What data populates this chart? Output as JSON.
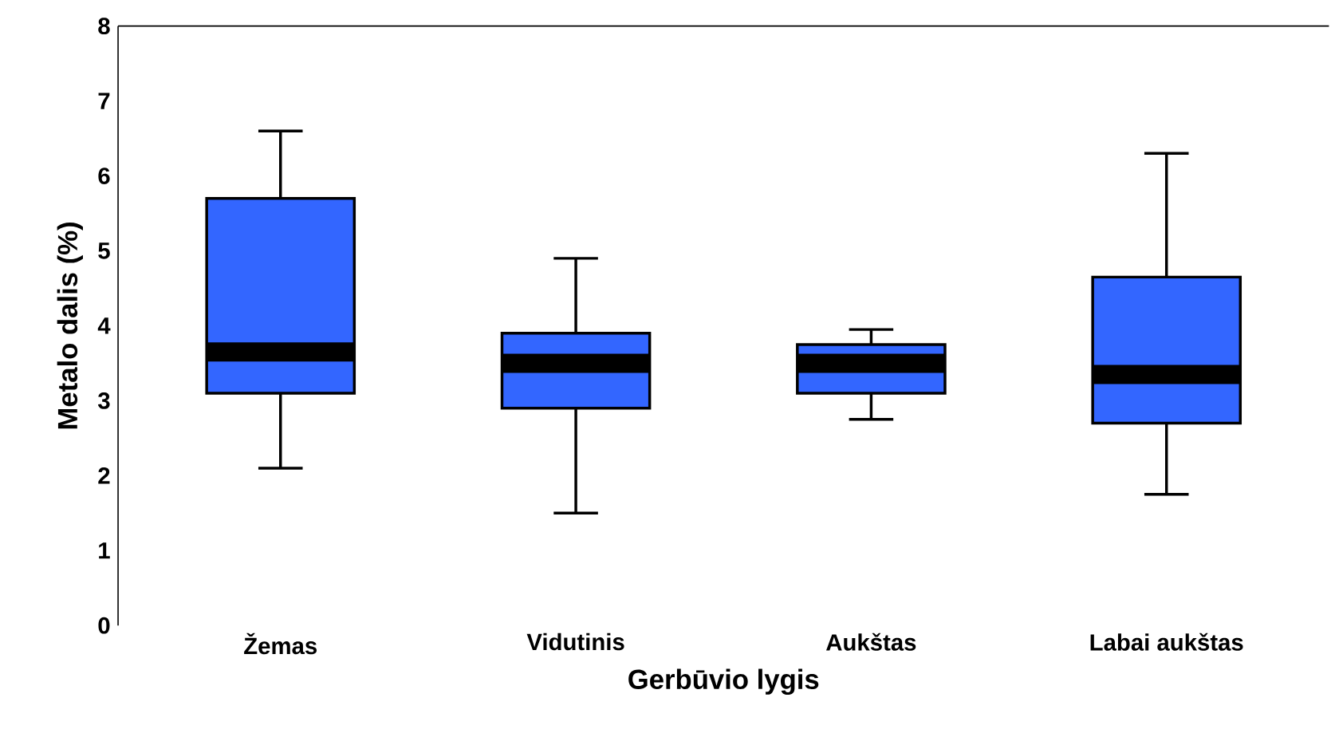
{
  "chart_data": {
    "type": "box",
    "xlabel": "Gerbūvio lygis",
    "ylabel": "Metalo dalis (%)",
    "categories": [
      "Žemas",
      "Vidutinis",
      "Aukštas",
      "Labai aukštas"
    ],
    "color": "#3366ff",
    "ylim": [
      0,
      8
    ],
    "yticks": [
      0,
      1,
      2,
      3,
      4,
      5,
      6,
      7,
      8
    ],
    "boxes": [
      {
        "low": 2.1,
        "q1": 3.1,
        "median": 3.65,
        "q3": 5.7,
        "high": 6.6
      },
      {
        "low": 1.5,
        "q1": 2.9,
        "median": 3.5,
        "q3": 3.9,
        "high": 4.9
      },
      {
        "low": 2.75,
        "q1": 3.1,
        "median": 3.5,
        "q3": 3.75,
        "high": 3.95
      },
      {
        "low": 1.75,
        "q1": 2.7,
        "median": 3.35,
        "q3": 4.65,
        "high": 6.3
      }
    ]
  }
}
